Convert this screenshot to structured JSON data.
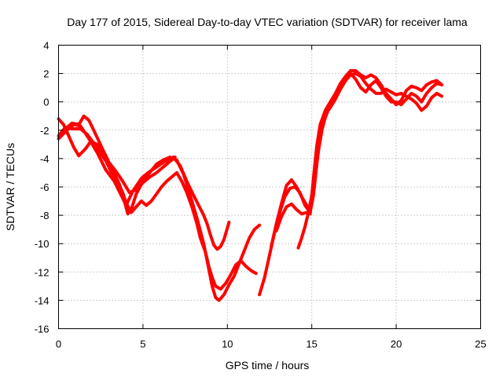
{
  "chart_data": {
    "type": "scatter",
    "title": "Day 177 of 2015, Sidereal Day-to-day VTEC variation (SDTVAR) for receiver lama",
    "xlabel": "GPS time / hours",
    "ylabel": "SDTVAR / TECUs",
    "xlim": [
      0,
      25
    ],
    "ylim": [
      -16,
      4
    ],
    "xticks": [
      "0",
      "5",
      "10",
      "15",
      "20",
      "25"
    ],
    "yticks": [
      "-16",
      "-14",
      "-12",
      "-10",
      "-8",
      "-6",
      "-4",
      "-2",
      "0",
      "2",
      "4"
    ],
    "grid": true,
    "series_color": "#ff0000",
    "series": [
      {
        "points": [
          [
            0.0,
            -2.6
          ],
          [
            0.5,
            -2.0
          ],
          [
            0.9,
            -1.6
          ],
          [
            1.3,
            -1.7
          ],
          [
            1.8,
            -2.6
          ],
          [
            2.3,
            -3.6
          ],
          [
            2.8,
            -4.8
          ],
          [
            3.3,
            -5.6
          ],
          [
            3.8,
            -6.8
          ],
          [
            4.0,
            -7.3
          ],
          [
            4.4,
            -6.3
          ],
          [
            4.9,
            -5.4
          ],
          [
            5.3,
            -5.0
          ],
          [
            5.8,
            -4.6
          ],
          [
            6.3,
            -4.2
          ],
          [
            6.8,
            -3.9
          ],
          [
            7.2,
            -4.5
          ],
          [
            7.6,
            -5.6
          ],
          [
            8.0,
            -6.6
          ],
          [
            8.3,
            -7.3
          ],
          [
            8.6,
            -8.0
          ],
          [
            8.8,
            -8.6
          ],
          [
            9.0,
            -9.4
          ],
          [
            9.2,
            -10.1
          ],
          [
            9.4,
            -10.4
          ],
          [
            9.6,
            -10.2
          ],
          [
            9.8,
            -9.7
          ],
          [
            10.0,
            -8.9
          ],
          [
            10.1,
            -8.5
          ]
        ]
      },
      {
        "points": [
          [
            0.0,
            -2.4
          ],
          [
            0.4,
            -1.8
          ],
          [
            0.8,
            -1.9
          ],
          [
            1.3,
            -1.9
          ],
          [
            1.7,
            -2.3
          ],
          [
            2.2,
            -3.1
          ],
          [
            2.7,
            -4.0
          ],
          [
            3.2,
            -4.8
          ],
          [
            3.6,
            -5.8
          ],
          [
            3.9,
            -7.0
          ],
          [
            4.1,
            -7.9
          ],
          [
            4.3,
            -7.6
          ],
          [
            4.6,
            -6.5
          ],
          [
            5.0,
            -5.6
          ],
          [
            5.4,
            -5.0
          ],
          [
            5.8,
            -4.4
          ],
          [
            6.2,
            -4.1
          ],
          [
            6.6,
            -3.9
          ],
          [
            7.0,
            -4.1
          ],
          [
            7.4,
            -5.1
          ],
          [
            7.8,
            -6.6
          ],
          [
            8.2,
            -8.2
          ],
          [
            8.6,
            -10.0
          ],
          [
            8.9,
            -11.8
          ],
          [
            9.1,
            -13.0
          ],
          [
            9.3,
            -13.8
          ],
          [
            9.5,
            -14.0
          ],
          [
            9.8,
            -13.6
          ],
          [
            10.1,
            -12.9
          ],
          [
            10.4,
            -12.3
          ],
          [
            10.7,
            -11.4
          ],
          [
            11.0,
            -10.5
          ],
          [
            11.3,
            -9.6
          ],
          [
            11.6,
            -9.0
          ],
          [
            11.9,
            -8.7
          ]
        ]
      },
      {
        "points": [
          [
            0.0,
            -1.2
          ],
          [
            0.3,
            -1.6
          ],
          [
            0.6,
            -2.4
          ],
          [
            0.9,
            -3.2
          ],
          [
            1.2,
            -3.8
          ],
          [
            1.6,
            -3.3
          ],
          [
            1.9,
            -2.8
          ],
          [
            2.3,
            -3.0
          ],
          [
            2.7,
            -3.9
          ],
          [
            3.1,
            -4.9
          ],
          [
            3.5,
            -5.6
          ],
          [
            3.8,
            -6.4
          ],
          [
            4.0,
            -7.1
          ],
          [
            4.3,
            -7.8
          ],
          [
            4.6,
            -7.4
          ],
          [
            4.9,
            -7.0
          ],
          [
            5.2,
            -7.3
          ],
          [
            5.5,
            -7.0
          ],
          [
            5.8,
            -6.5
          ],
          [
            6.1,
            -6.0
          ],
          [
            6.4,
            -5.6
          ],
          [
            6.7,
            -5.3
          ],
          [
            7.0,
            -5.0
          ],
          [
            7.3,
            -5.6
          ],
          [
            7.6,
            -6.4
          ],
          [
            7.9,
            -7.4
          ],
          [
            8.2,
            -8.6
          ],
          [
            8.4,
            -9.6
          ],
          [
            8.7,
            -10.6
          ],
          [
            8.9,
            -11.6
          ],
          [
            9.1,
            -12.4
          ],
          [
            9.3,
            -13.0
          ],
          [
            9.6,
            -13.2
          ],
          [
            9.9,
            -12.8
          ],
          [
            10.2,
            -12.2
          ],
          [
            10.5,
            -11.5
          ],
          [
            10.8,
            -11.2
          ],
          [
            11.1,
            -11.6
          ],
          [
            11.4,
            -11.9
          ],
          [
            11.7,
            -12.1
          ]
        ]
      },
      {
        "points": [
          [
            0.4,
            -1.9
          ],
          [
            0.8,
            -1.5
          ],
          [
            1.2,
            -1.6
          ],
          [
            1.5,
            -1.0
          ],
          [
            1.8,
            -1.3
          ],
          [
            2.2,
            -2.3
          ],
          [
            2.6,
            -3.3
          ],
          [
            3.0,
            -4.3
          ],
          [
            3.4,
            -4.9
          ],
          [
            3.8,
            -5.6
          ],
          [
            4.2,
            -6.4
          ],
          [
            4.6,
            -6.2
          ],
          [
            5.0,
            -5.7
          ],
          [
            5.4,
            -5.3
          ],
          [
            5.8,
            -5.0
          ],
          [
            6.2,
            -4.6
          ],
          [
            6.6,
            -4.2
          ],
          [
            6.9,
            -3.9
          ]
        ]
      },
      {
        "points": [
          [
            11.9,
            -13.6
          ],
          [
            12.2,
            -12.4
          ],
          [
            12.5,
            -10.8
          ],
          [
            12.8,
            -9.2
          ],
          [
            13.1,
            -7.8
          ],
          [
            13.4,
            -6.7
          ],
          [
            13.7,
            -6.1
          ],
          [
            14.0,
            -6.0
          ],
          [
            14.3,
            -6.4
          ],
          [
            14.6,
            -7.3
          ],
          [
            14.9,
            -7.8
          ],
          [
            15.1,
            -6.0
          ],
          [
            15.3,
            -3.7
          ],
          [
            15.5,
            -1.9
          ],
          [
            15.8,
            -0.9
          ],
          [
            16.1,
            -0.4
          ],
          [
            16.4,
            0.2
          ],
          [
            16.7,
            0.9
          ],
          [
            17.0,
            1.5
          ],
          [
            17.3,
            1.9
          ],
          [
            17.6,
            2.0
          ],
          [
            17.9,
            1.8
          ],
          [
            18.2,
            1.3
          ],
          [
            18.5,
            0.9
          ],
          [
            18.8,
            0.6
          ],
          [
            19.1,
            0.6
          ],
          [
            19.4,
            0.9
          ],
          [
            19.7,
            0.7
          ],
          [
            20.0,
            0.5
          ],
          [
            20.3,
            0.6
          ],
          [
            20.6,
            0.4
          ],
          [
            20.9,
            0.2
          ],
          [
            21.2,
            -0.1
          ],
          [
            21.5,
            -0.6
          ],
          [
            21.8,
            -0.3
          ],
          [
            22.1,
            0.3
          ],
          [
            22.4,
            0.6
          ],
          [
            22.7,
            0.4
          ]
        ]
      },
      {
        "points": [
          [
            12.6,
            -10.2
          ],
          [
            12.9,
            -8.6
          ],
          [
            13.2,
            -7.2
          ],
          [
            13.5,
            -5.9
          ],
          [
            13.8,
            -5.5
          ],
          [
            14.1,
            -6.0
          ],
          [
            14.4,
            -6.7
          ],
          [
            14.7,
            -7.3
          ],
          [
            14.9,
            -7.8
          ],
          [
            15.1,
            -6.6
          ],
          [
            15.3,
            -4.4
          ],
          [
            15.5,
            -2.4
          ],
          [
            15.8,
            -1.1
          ],
          [
            16.1,
            -0.2
          ],
          [
            16.4,
            0.4
          ],
          [
            16.7,
            1.1
          ],
          [
            17.0,
            1.8
          ],
          [
            17.3,
            2.2
          ],
          [
            17.6,
            2.2
          ],
          [
            17.9,
            1.9
          ],
          [
            18.2,
            1.7
          ],
          [
            18.5,
            1.9
          ],
          [
            18.8,
            1.7
          ],
          [
            19.1,
            1.2
          ],
          [
            19.4,
            0.6
          ],
          [
            19.7,
            0.2
          ],
          [
            20.0,
            -0.2
          ],
          [
            20.3,
            0.1
          ],
          [
            20.6,
            0.8
          ],
          [
            20.9,
            1.1
          ],
          [
            21.2,
            1.0
          ],
          [
            21.5,
            0.8
          ],
          [
            21.8,
            1.2
          ],
          [
            22.1,
            1.4
          ],
          [
            22.4,
            1.5
          ],
          [
            22.7,
            1.2
          ]
        ]
      },
      {
        "points": [
          [
            12.9,
            -9.1
          ],
          [
            13.2,
            -8.1
          ],
          [
            13.5,
            -7.4
          ],
          [
            13.8,
            -7.2
          ],
          [
            14.1,
            -7.6
          ],
          [
            14.4,
            -7.9
          ],
          [
            14.7,
            -7.8
          ],
          [
            14.9,
            -7.9
          ],
          [
            15.1,
            -5.4
          ],
          [
            15.3,
            -3.1
          ],
          [
            15.5,
            -1.6
          ],
          [
            15.8,
            -0.6
          ],
          [
            16.1,
            0.0
          ],
          [
            16.4,
            0.6
          ],
          [
            16.7,
            1.3
          ],
          [
            17.0,
            1.8
          ],
          [
            17.3,
            2.0
          ],
          [
            17.6,
            1.6
          ],
          [
            17.9,
            1.0
          ],
          [
            18.2,
            0.7
          ],
          [
            18.5,
            1.2
          ],
          [
            18.8,
            1.5
          ],
          [
            19.1,
            1.0
          ],
          [
            19.4,
            0.4
          ],
          [
            19.7,
            0.0
          ],
          [
            20.0,
            0.0
          ],
          [
            20.3,
            -0.2
          ],
          [
            20.6,
            0.2
          ],
          [
            20.9,
            0.6
          ],
          [
            21.2,
            0.4
          ],
          [
            21.5,
            0.0
          ],
          [
            21.8,
            0.6
          ],
          [
            22.1,
            1.0
          ],
          [
            22.4,
            1.3
          ],
          [
            22.7,
            1.2
          ]
        ]
      },
      {
        "points": [
          [
            14.2,
            -10.3
          ],
          [
            14.4,
            -9.6
          ],
          [
            14.6,
            -8.8
          ],
          [
            14.8,
            -7.8
          ],
          [
            15.0,
            -6.6
          ],
          [
            15.2,
            -5.0
          ],
          [
            15.4,
            -3.4
          ],
          [
            15.6,
            -2.0
          ],
          [
            15.8,
            -1.0
          ],
          [
            16.0,
            -0.3
          ],
          [
            16.2,
            0.2
          ]
        ]
      }
    ]
  }
}
